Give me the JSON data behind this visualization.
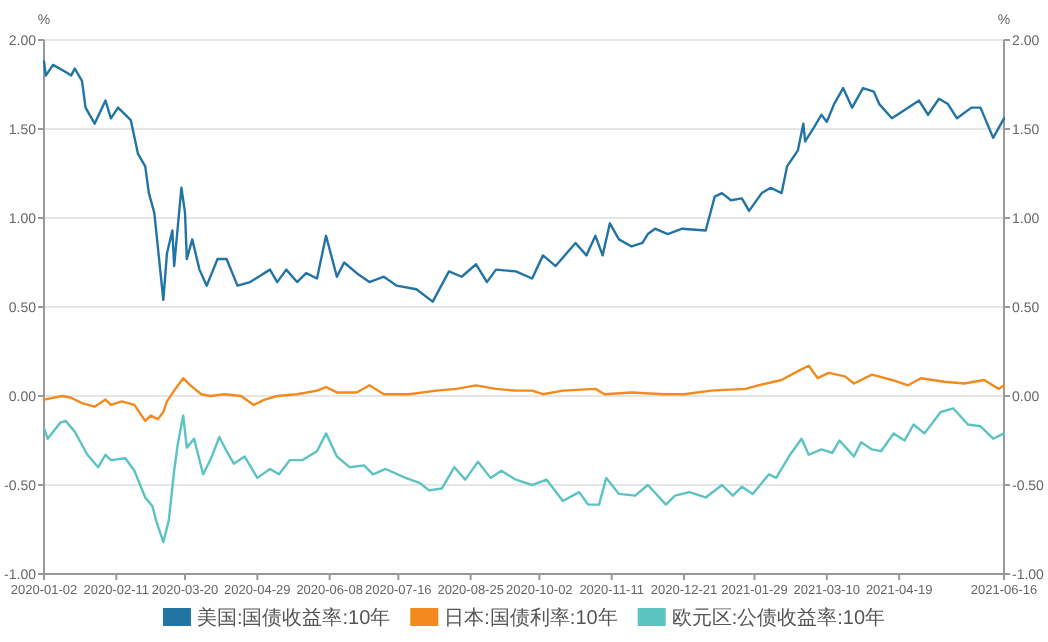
{
  "chart_data": {
    "type": "line",
    "ylabel": "%",
    "y2label": "%",
    "grid": "y",
    "legend": "bottom",
    "xlim": [
      "2020-01-02",
      "2021-06-16"
    ],
    "xticks": [
      "2020-01-02",
      "2020-02-11",
      "2020-03-20",
      "2020-04-29",
      "2020-06-08",
      "2020-07-16",
      "2020-08-25",
      "2020-10-02",
      "2020-11-11",
      "2020-12-21",
      "2021-01-29",
      "2021-03-10",
      "2021-04-19",
      "2021-06-16"
    ],
    "ylim": [
      -1,
      2
    ],
    "yticks": [
      {
        "value": 2,
        "label": "2.00"
      },
      {
        "value": 1.5,
        "label": "1.50"
      },
      {
        "value": 1,
        "label": "1.00"
      },
      {
        "value": 0.5,
        "label": "0.50"
      },
      {
        "value": 0,
        "label": "0.00"
      },
      {
        "value": -0.5,
        "label": "-0.50"
      },
      {
        "value": -1,
        "label": "-1.00"
      }
    ],
    "y2lim": [
      -1,
      2
    ],
    "y2ticks": [
      {
        "value": 2,
        "label": "2.00"
      },
      {
        "value": 1.5,
        "label": "1.50"
      },
      {
        "value": 1,
        "label": "1.00"
      },
      {
        "value": 0.5,
        "label": "0.50"
      },
      {
        "value": 0,
        "label": "0.00"
      },
      {
        "value": -0.5,
        "label": "-0.50"
      },
      {
        "value": -1,
        "label": "-1.00"
      }
    ],
    "series": [
      {
        "name": "美国:国债收益率:10年",
        "color": "#2274a5",
        "x": [
          "2020-01-02",
          "2020-01-03",
          "2020-01-07",
          "2020-01-14",
          "2020-01-17",
          "2020-01-19",
          "2020-01-23",
          "2020-01-25",
          "2020-01-30",
          "2020-02-05",
          "2020-02-08",
          "2020-02-12",
          "2020-02-19",
          "2020-02-23",
          "2020-02-27",
          "2020-02-29",
          "2020-03-03",
          "2020-03-08",
          "2020-03-10",
          "2020-03-13",
          "2020-03-14",
          "2020-03-18",
          "2020-03-20",
          "2020-03-21",
          "2020-03-24",
          "2020-03-28",
          "2020-04-01",
          "2020-04-07",
          "2020-04-12",
          "2020-04-18",
          "2020-04-25",
          "2020-05-06",
          "2020-05-10",
          "2020-05-15",
          "2020-05-21",
          "2020-05-26",
          "2020-06-01",
          "2020-06-06",
          "2020-06-12",
          "2020-06-16",
          "2020-06-23",
          "2020-06-30",
          "2020-07-08",
          "2020-07-15",
          "2020-07-26",
          "2020-08-04",
          "2020-08-13",
          "2020-08-20",
          "2020-08-28",
          "2020-09-03",
          "2020-09-08",
          "2020-09-19",
          "2020-09-28",
          "2020-10-04",
          "2020-10-11",
          "2020-10-22",
          "2020-10-28",
          "2020-11-02",
          "2020-11-06",
          "2020-11-10",
          "2020-11-15",
          "2020-11-22",
          "2020-11-28",
          "2020-12-01",
          "2020-12-05",
          "2020-12-12",
          "2020-12-20",
          "2021-01-02",
          "2021-01-07",
          "2021-01-11",
          "2021-01-16",
          "2021-01-22",
          "2021-01-26",
          "2021-02-02",
          "2021-02-07",
          "2021-02-13",
          "2021-02-16",
          "2021-02-22",
          "2021-02-25",
          "2021-02-26",
          "2021-03-03",
          "2021-03-07",
          "2021-03-10",
          "2021-03-14",
          "2021-03-19",
          "2021-03-24",
          "2021-03-30",
          "2021-04-05",
          "2021-04-08",
          "2021-04-15",
          "2021-04-21",
          "2021-04-30",
          "2021-05-05",
          "2021-05-11",
          "2021-05-16",
          "2021-05-21",
          "2021-05-29",
          "2021-06-03",
          "2021-06-10",
          "2021-06-16"
        ],
        "values": [
          1.88,
          1.8,
          1.86,
          1.82,
          1.8,
          1.84,
          1.77,
          1.62,
          1.53,
          1.66,
          1.56,
          1.62,
          1.55,
          1.36,
          1.29,
          1.14,
          1.03,
          0.54,
          0.8,
          0.93,
          0.73,
          1.17,
          1.03,
          0.77,
          0.88,
          0.71,
          0.62,
          0.77,
          0.77,
          0.62,
          0.64,
          0.71,
          0.64,
          0.71,
          0.64,
          0.69,
          0.66,
          0.9,
          0.67,
          0.75,
          0.69,
          0.64,
          0.67,
          0.62,
          0.6,
          0.53,
          0.7,
          0.67,
          0.74,
          0.64,
          0.71,
          0.7,
          0.66,
          0.79,
          0.73,
          0.86,
          0.79,
          0.9,
          0.79,
          0.97,
          0.88,
          0.84,
          0.86,
          0.91,
          0.94,
          0.91,
          0.94,
          0.93,
          1.12,
          1.14,
          1.1,
          1.11,
          1.04,
          1.14,
          1.17,
          1.14,
          1.29,
          1.38,
          1.53,
          1.43,
          1.51,
          1.58,
          1.54,
          1.64,
          1.73,
          1.62,
          1.73,
          1.71,
          1.64,
          1.56,
          1.6,
          1.66,
          1.58,
          1.67,
          1.64,
          1.56,
          1.62,
          1.62,
          1.45,
          1.56
        ]
      },
      {
        "name": "日本:国债利率:10年",
        "color": "#f28a1e",
        "x": [
          "2020-01-02",
          "2020-01-12",
          "2020-01-17",
          "2020-01-23",
          "2020-01-30",
          "2020-02-05",
          "2020-02-08",
          "2020-02-14",
          "2020-02-21",
          "2020-02-27",
          "2020-03-01",
          "2020-03-05",
          "2020-03-08",
          "2020-03-10",
          "2020-03-14",
          "2020-03-19",
          "2020-03-23",
          "2020-03-29",
          "2020-04-03",
          "2020-04-11",
          "2020-04-20",
          "2020-04-27",
          "2020-05-03",
          "2020-05-10",
          "2020-05-21",
          "2020-06-01",
          "2020-06-06",
          "2020-06-12",
          "2020-06-23",
          "2020-06-30",
          "2020-07-08",
          "2020-07-22",
          "2020-08-06",
          "2020-08-17",
          "2020-08-28",
          "2020-09-08",
          "2020-09-19",
          "2020-09-28",
          "2020-10-04",
          "2020-10-15",
          "2020-11-02",
          "2020-11-07",
          "2020-11-22",
          "2020-12-10",
          "2020-12-21",
          "2021-01-05",
          "2021-01-24",
          "2021-01-31",
          "2021-02-13",
          "2021-02-22",
          "2021-02-28",
          "2021-03-05",
          "2021-03-11",
          "2021-03-20",
          "2021-03-25",
          "2021-04-04",
          "2021-04-15",
          "2021-04-24",
          "2021-05-01",
          "2021-05-14",
          "2021-05-25",
          "2021-06-05",
          "2021-06-13",
          "2021-06-16"
        ],
        "values": [
          -0.02,
          0.0,
          -0.01,
          -0.04,
          -0.06,
          -0.02,
          -0.05,
          -0.03,
          -0.05,
          -0.14,
          -0.11,
          -0.13,
          -0.09,
          -0.03,
          0.03,
          0.1,
          0.06,
          0.01,
          0.0,
          0.01,
          0.0,
          -0.05,
          -0.02,
          0.0,
          0.01,
          0.03,
          0.05,
          0.02,
          0.02,
          0.06,
          0.01,
          0.01,
          0.03,
          0.04,
          0.06,
          0.04,
          0.03,
          0.03,
          0.01,
          0.03,
          0.04,
          0.01,
          0.02,
          0.01,
          0.01,
          0.03,
          0.04,
          0.06,
          0.09,
          0.14,
          0.17,
          0.1,
          0.13,
          0.11,
          0.07,
          0.12,
          0.09,
          0.06,
          0.1,
          0.08,
          0.07,
          0.09,
          0.04,
          0.06
        ]
      },
      {
        "name": "欧元区:公债收益率:10年",
        "color": "#5cc3c3",
        "x": [
          "2020-01-02",
          "2020-01-04",
          "2020-01-11",
          "2020-01-14",
          "2020-01-19",
          "2020-01-26",
          "2020-02-01",
          "2020-02-05",
          "2020-02-08",
          "2020-02-16",
          "2020-02-21",
          "2020-02-27",
          "2020-03-02",
          "2020-03-04",
          "2020-03-08",
          "2020-03-11",
          "2020-03-14",
          "2020-03-16",
          "2020-03-19",
          "2020-03-21",
          "2020-03-25",
          "2020-03-30",
          "2020-04-03",
          "2020-04-08",
          "2020-04-12",
          "2020-04-16",
          "2020-04-22",
          "2020-04-29",
          "2020-05-06",
          "2020-05-11",
          "2020-05-17",
          "2020-05-24",
          "2020-06-01",
          "2020-06-06",
          "2020-06-12",
          "2020-06-19",
          "2020-06-27",
          "2020-07-02",
          "2020-07-09",
          "2020-07-20",
          "2020-07-28",
          "2020-08-02",
          "2020-08-09",
          "2020-08-16",
          "2020-08-22",
          "2020-08-29",
          "2020-09-05",
          "2020-09-11",
          "2020-09-19",
          "2020-09-28",
          "2020-10-06",
          "2020-10-15",
          "2020-10-24",
          "2020-10-29",
          "2020-11-04",
          "2020-11-08",
          "2020-11-15",
          "2020-11-24",
          "2020-12-01",
          "2020-12-11",
          "2020-12-16",
          "2020-12-24",
          "2021-01-02",
          "2021-01-11",
          "2021-01-17",
          "2021-01-22",
          "2021-01-28",
          "2021-02-06",
          "2021-02-10",
          "2021-02-17",
          "2021-02-24",
          "2021-02-28",
          "2021-03-07",
          "2021-03-13",
          "2021-03-17",
          "2021-03-25",
          "2021-03-29",
          "2021-04-04",
          "2021-04-09",
          "2021-04-16",
          "2021-04-22",
          "2021-04-27",
          "2021-05-03",
          "2021-05-12",
          "2021-05-19",
          "2021-05-27",
          "2021-06-03",
          "2021-06-10",
          "2021-06-16"
        ],
        "values": [
          -0.18,
          -0.24,
          -0.15,
          -0.14,
          -0.2,
          -0.33,
          -0.4,
          -0.33,
          -0.36,
          -0.35,
          -0.42,
          -0.57,
          -0.62,
          -0.7,
          -0.82,
          -0.7,
          -0.42,
          -0.27,
          -0.11,
          -0.29,
          -0.24,
          -0.44,
          -0.36,
          -0.23,
          -0.31,
          -0.38,
          -0.34,
          -0.46,
          -0.41,
          -0.44,
          -0.36,
          -0.36,
          -0.31,
          -0.21,
          -0.34,
          -0.4,
          -0.39,
          -0.44,
          -0.41,
          -0.46,
          -0.49,
          -0.53,
          -0.52,
          -0.4,
          -0.47,
          -0.37,
          -0.46,
          -0.42,
          -0.47,
          -0.5,
          -0.47,
          -0.59,
          -0.54,
          -0.61,
          -0.61,
          -0.46,
          -0.55,
          -0.56,
          -0.5,
          -0.61,
          -0.56,
          -0.54,
          -0.57,
          -0.5,
          -0.56,
          -0.51,
          -0.55,
          -0.44,
          -0.46,
          -0.34,
          -0.24,
          -0.33,
          -0.3,
          -0.32,
          -0.25,
          -0.34,
          -0.26,
          -0.3,
          -0.31,
          -0.21,
          -0.25,
          -0.16,
          -0.21,
          -0.09,
          -0.07,
          -0.16,
          -0.17,
          -0.24,
          -0.21
        ]
      }
    ]
  }
}
